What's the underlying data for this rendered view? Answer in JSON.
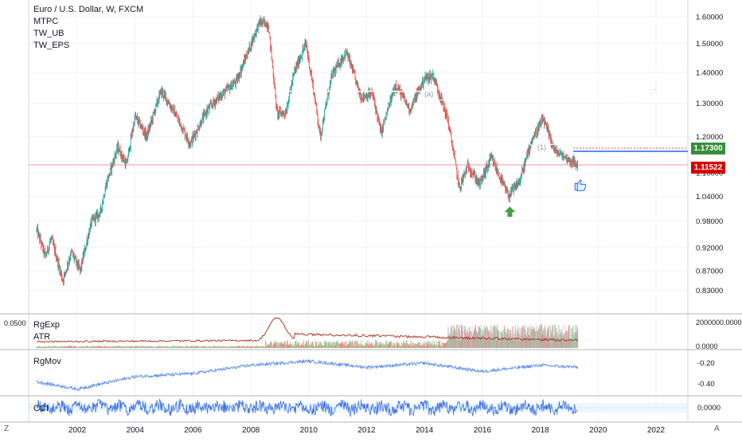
{
  "header": {
    "title": "Euro / U.S. Dollar, W, FXCM",
    "indicators": [
      "MTPC",
      "TW_UB",
      "TW_EPS"
    ]
  },
  "colors": {
    "up": "#26a69a",
    "down": "#ef5350",
    "pivot_blue": "#2962ff",
    "highlight_red": "#d50000",
    "highlight_green": "#388e3c",
    "rgexp_line": "#a52714",
    "rgmov_line": "#5b8def",
    "cci_line": "#3b6fe0",
    "projection": "#ffffff"
  },
  "price_axis": {
    "labels": [
      "1.60000",
      "1.50000",
      "1.40000",
      "1.30000",
      "1.20000",
      "1.10000",
      "1.04000",
      "0.98000",
      "0.92000",
      "0.87000",
      "0.83000"
    ],
    "current_green": "1.17300",
    "current_red": "1.11522"
  },
  "time_axis": {
    "labels": [
      "2002",
      "2004",
      "2006",
      "2008",
      "2010",
      "2012",
      "2014",
      "2016",
      "2018",
      "2020",
      "2022"
    ]
  },
  "annotation": {
    "label_a": "(a)",
    "label_1": "(1)"
  },
  "panes": {
    "rgexp": {
      "labels": [
        "RgExp",
        "ATR"
      ],
      "left_value": "0.0500",
      "axis": [
        "2000000.0000",
        "0.0000"
      ]
    },
    "rgmov": {
      "label": "RgMov",
      "axis": [
        "-0.20",
        "-0.40"
      ]
    },
    "cci": {
      "label": "CCI",
      "axis": [
        "0.0000"
      ]
    }
  },
  "corner": {
    "left": "Z",
    "right": "A"
  },
  "chart_data": [
    {
      "type": "candlestick",
      "title": "Euro / U.S. Dollar, W, FXCM",
      "x_range": [
        2000.5,
        2023.2
      ],
      "y_range": [
        0.8,
        1.64
      ],
      "log_scale": true,
      "key_points": [
        {
          "x": 2000.6,
          "y": 0.96
        },
        {
          "x": 2000.9,
          "y": 0.9
        },
        {
          "x": 2001.1,
          "y": 0.94
        },
        {
          "x": 2001.5,
          "y": 0.85
        },
        {
          "x": 2001.8,
          "y": 0.91
        },
        {
          "x": 2002.1,
          "y": 0.87
        },
        {
          "x": 2002.5,
          "y": 0.98
        },
        {
          "x": 2002.8,
          "y": 1.0
        },
        {
          "x": 2003.0,
          "y": 1.07
        },
        {
          "x": 2003.4,
          "y": 1.17
        },
        {
          "x": 2003.7,
          "y": 1.12
        },
        {
          "x": 2004.0,
          "y": 1.26
        },
        {
          "x": 2004.4,
          "y": 1.2
        },
        {
          "x": 2004.9,
          "y": 1.34
        },
        {
          "x": 2005.3,
          "y": 1.28
        },
        {
          "x": 2005.9,
          "y": 1.18
        },
        {
          "x": 2006.5,
          "y": 1.28
        },
        {
          "x": 2006.9,
          "y": 1.32
        },
        {
          "x": 2007.5,
          "y": 1.37
        },
        {
          "x": 2007.9,
          "y": 1.47
        },
        {
          "x": 2008.3,
          "y": 1.58
        },
        {
          "x": 2008.6,
          "y": 1.57
        },
        {
          "x": 2008.9,
          "y": 1.27
        },
        {
          "x": 2009.2,
          "y": 1.27
        },
        {
          "x": 2009.5,
          "y": 1.4
        },
        {
          "x": 2009.9,
          "y": 1.5
        },
        {
          "x": 2010.4,
          "y": 1.2
        },
        {
          "x": 2010.8,
          "y": 1.39
        },
        {
          "x": 2011.3,
          "y": 1.47
        },
        {
          "x": 2011.8,
          "y": 1.32
        },
        {
          "x": 2012.2,
          "y": 1.33
        },
        {
          "x": 2012.5,
          "y": 1.21
        },
        {
          "x": 2013.0,
          "y": 1.36
        },
        {
          "x": 2013.5,
          "y": 1.28
        },
        {
          "x": 2014.0,
          "y": 1.38
        },
        {
          "x": 2014.3,
          "y": 1.39
        },
        {
          "x": 2014.8,
          "y": 1.25
        },
        {
          "x": 2015.2,
          "y": 1.06
        },
        {
          "x": 2015.5,
          "y": 1.12
        },
        {
          "x": 2015.9,
          "y": 1.07
        },
        {
          "x": 2016.3,
          "y": 1.14
        },
        {
          "x": 2016.9,
          "y": 1.04
        },
        {
          "x": 2017.3,
          "y": 1.08
        },
        {
          "x": 2017.7,
          "y": 1.19
        },
        {
          "x": 2018.1,
          "y": 1.25
        },
        {
          "x": 2018.5,
          "y": 1.16
        },
        {
          "x": 2018.9,
          "y": 1.14
        },
        {
          "x": 2019.3,
          "y": 1.12
        }
      ]
    },
    {
      "type": "line",
      "name": "RgMov",
      "key_points": [
        {
          "x": 2000.6,
          "y": -0.38
        },
        {
          "x": 2002.0,
          "y": -0.45
        },
        {
          "x": 2004.0,
          "y": -0.33
        },
        {
          "x": 2006.0,
          "y": -0.3
        },
        {
          "x": 2008.0,
          "y": -0.22
        },
        {
          "x": 2010.0,
          "y": -0.18
        },
        {
          "x": 2012.0,
          "y": -0.24
        },
        {
          "x": 2014.0,
          "y": -0.2
        },
        {
          "x": 2016.0,
          "y": -0.28
        },
        {
          "x": 2018.0,
          "y": -0.22
        },
        {
          "x": 2019.3,
          "y": -0.24
        }
      ]
    }
  ]
}
